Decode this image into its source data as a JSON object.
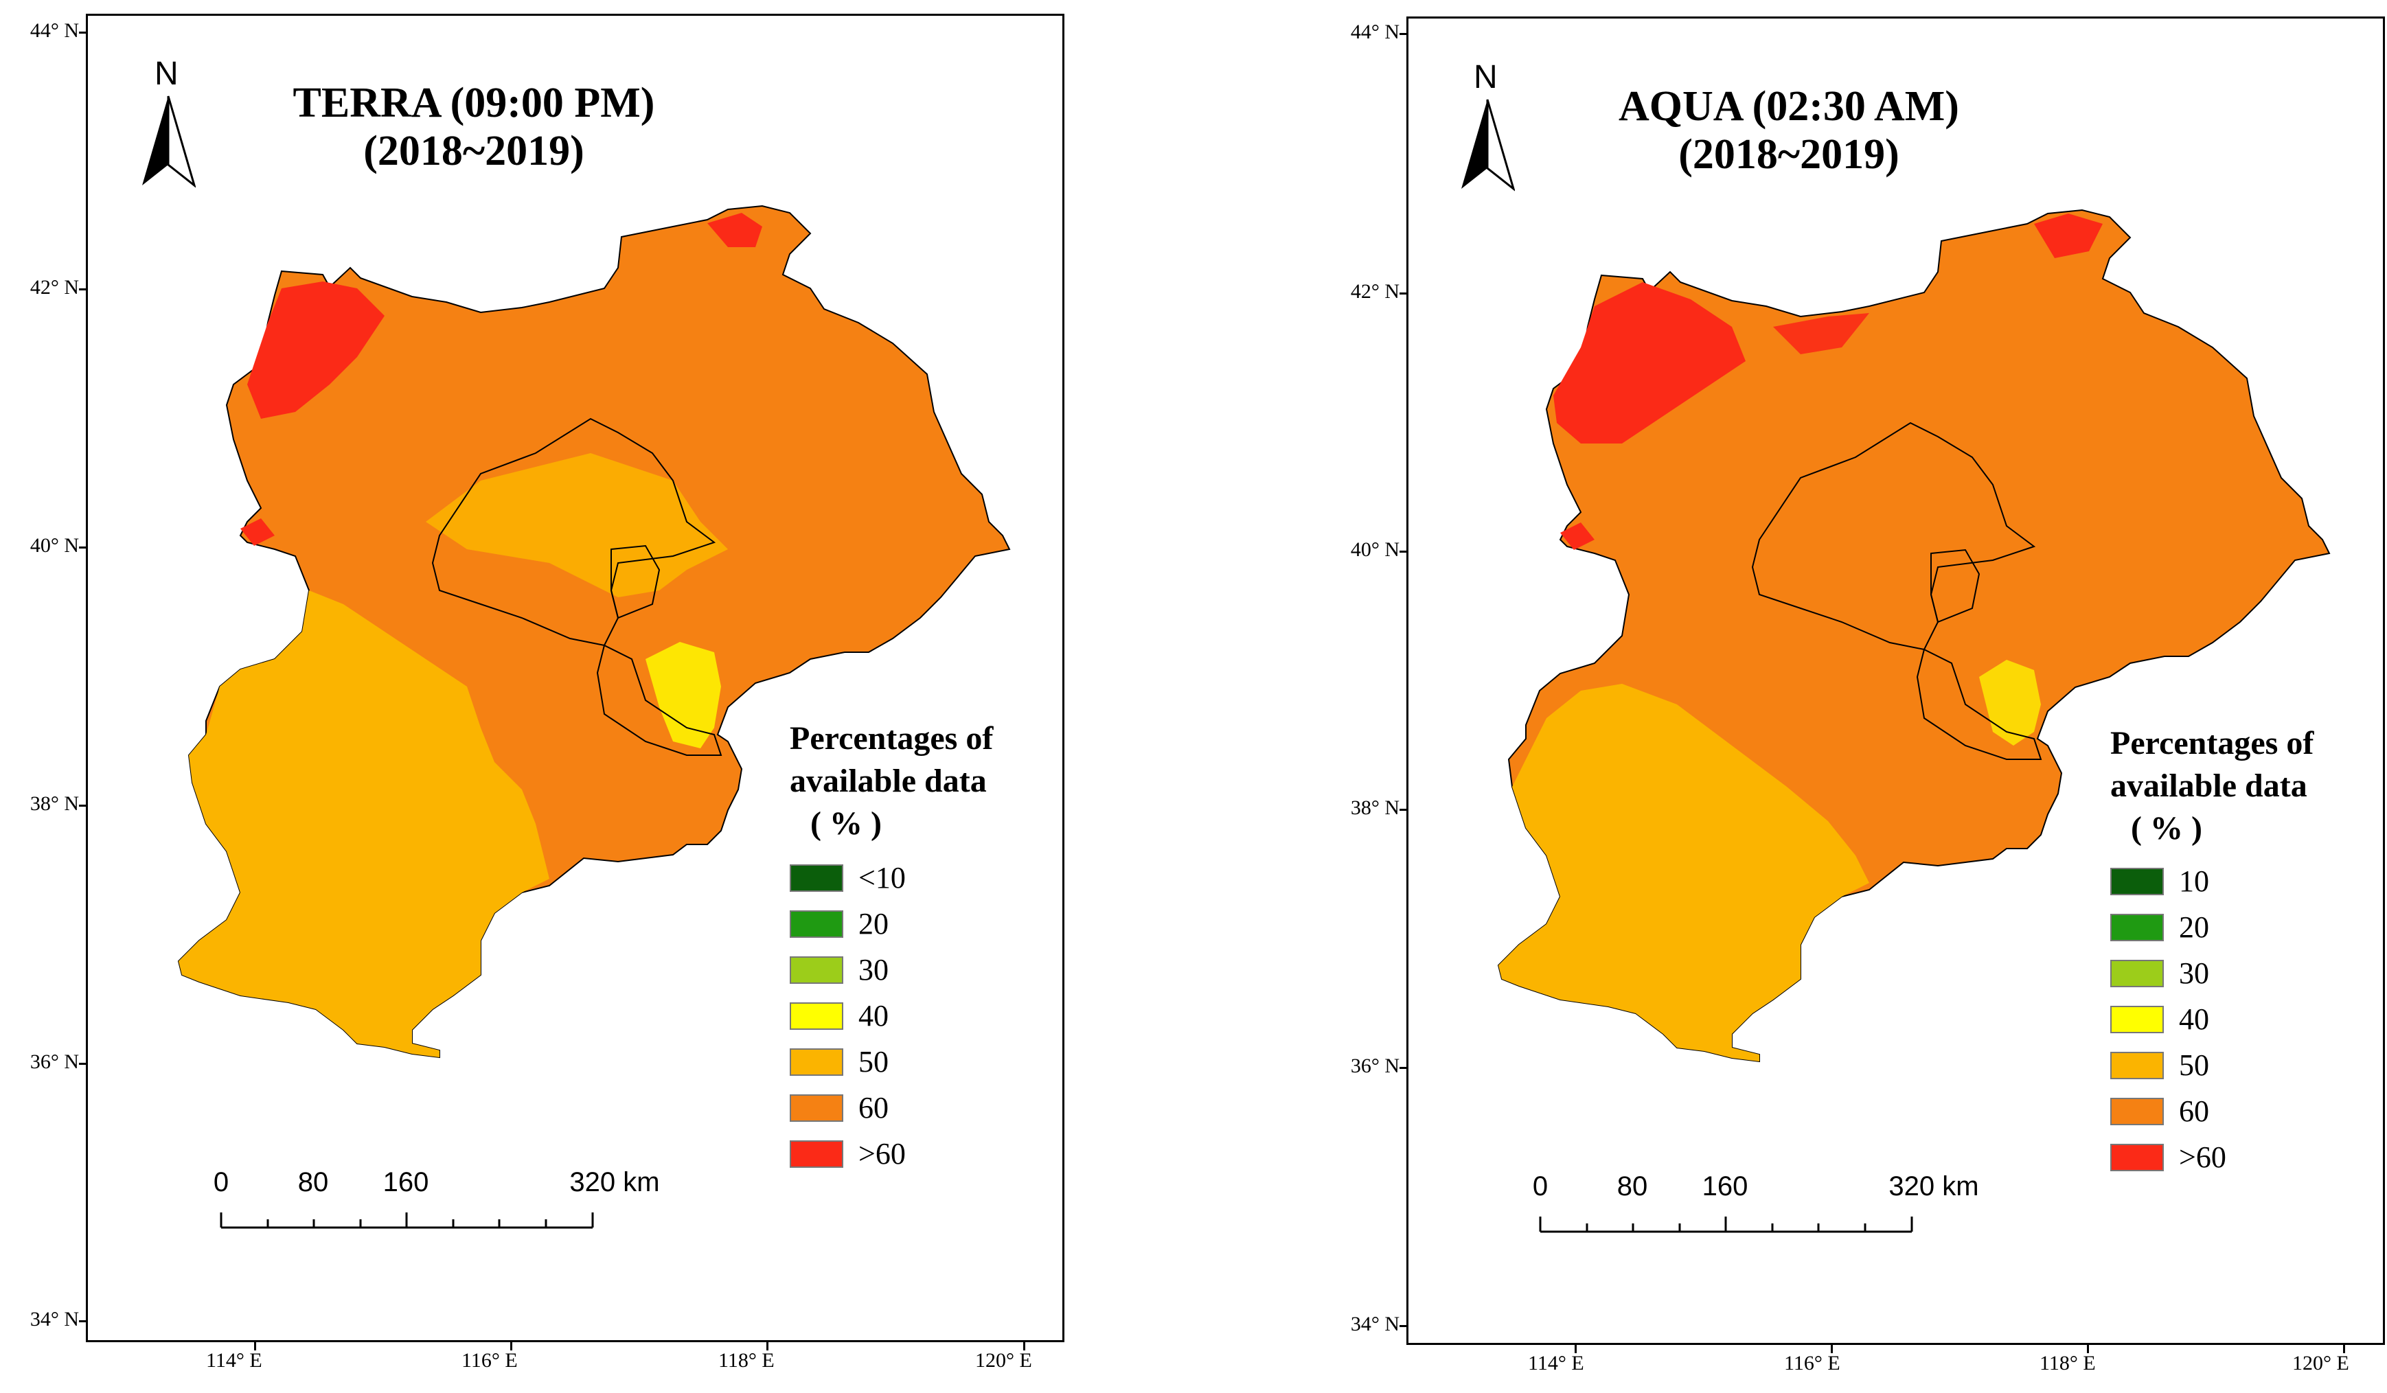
{
  "panels": [
    {
      "title_line1": "TERRA (09:00 PM)",
      "title_line2": "(2018~2019)",
      "north_label": "N",
      "y_labels": [
        "44° N",
        "42° N",
        "40° N",
        "38° N",
        "36° N",
        "34° N"
      ],
      "x_labels": [
        "114° E",
        "116° E",
        "118° E",
        "120° E"
      ],
      "legend_title": [
        "Percentages of",
        "available data",
        "( % )"
      ],
      "legend": [
        {
          "label": "<10",
          "color": "#0b5e0b"
        },
        {
          "label": "20",
          "color": "#1f9a12"
        },
        {
          "label": "30",
          "color": "#9ccd1a"
        },
        {
          "label": "40",
          "color": "#ffff00"
        },
        {
          "label": "50",
          "color": "#fbb400"
        },
        {
          "label": "60",
          "color": "#f58113"
        },
        {
          "label": ">60",
          "color": "#fb2a17"
        }
      ],
      "scale_labels": [
        "0",
        "80",
        "160",
        "320 km"
      ]
    },
    {
      "title_line1": "AQUA (02:30 AM)",
      "title_line2": "(2018~2019)",
      "north_label": "N",
      "y_labels": [
        "44° N",
        "42° N",
        "40° N",
        "38° N",
        "36° N",
        "34° N"
      ],
      "x_labels": [
        "114° E",
        "116° E",
        "118° E",
        "120° E"
      ],
      "legend_title": [
        "Percentages of",
        "available data",
        "( % )"
      ],
      "legend": [
        {
          "label": "10",
          "color": "#0b5e0b"
        },
        {
          "label": "20",
          "color": "#1f9a12"
        },
        {
          "label": "30",
          "color": "#9ccd1a"
        },
        {
          "label": "40",
          "color": "#ffff00"
        },
        {
          "label": "50",
          "color": "#fbb400"
        },
        {
          "label": "60",
          "color": "#f58113"
        },
        {
          "label": ">60",
          "color": "#fb2a17"
        }
      ],
      "scale_labels": [
        "0",
        "80",
        "160",
        "320 km"
      ]
    }
  ]
}
